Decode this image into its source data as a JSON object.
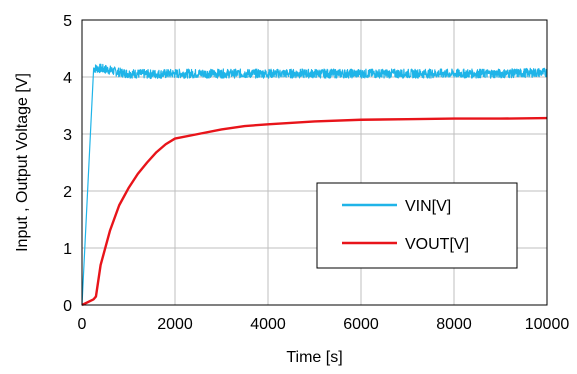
{
  "chart_data": {
    "type": "line",
    "xlabel": "Time [s]",
    "ylabel": "Input , Output Voltage [V]",
    "xlim": [
      0,
      10000
    ],
    "ylim": [
      0,
      5
    ],
    "xticks": [
      0,
      2000,
      4000,
      6000,
      8000,
      10000
    ],
    "yticks": [
      0,
      1,
      2,
      3,
      4,
      5
    ],
    "xtick_labels": [
      "0",
      "2000",
      "4000",
      "6000",
      "8000",
      "10000"
    ],
    "ytick_labels": [
      "0",
      "1",
      "2",
      "3",
      "4",
      "5"
    ],
    "grid": true,
    "legend_placement": "center-right",
    "series": [
      {
        "name": "VIN[V]",
        "color": "#1fb4e8",
        "x": [
          0,
          250,
          400,
          600,
          800,
          1000,
          1500,
          2000,
          3000,
          4000,
          5000,
          6000,
          7000,
          8000,
          9000,
          10000
        ],
        "y": [
          0,
          4.15,
          4.15,
          4.12,
          4.08,
          4.06,
          4.05,
          4.06,
          4.06,
          4.06,
          4.06,
          4.06,
          4.06,
          4.06,
          4.06,
          4.08
        ],
        "noise_amplitude": 0.08
      },
      {
        "name": "VOUT[V]",
        "color": "#e8141a",
        "x": [
          0,
          250,
          300,
          400,
          600,
          800,
          1000,
          1200,
          1400,
          1600,
          1800,
          2000,
          2500,
          3000,
          3500,
          4000,
          5000,
          6000,
          7000,
          8000,
          9000,
          10000
        ],
        "y": [
          0,
          0.1,
          0.15,
          0.7,
          1.3,
          1.75,
          2.05,
          2.3,
          2.5,
          2.68,
          2.82,
          2.92,
          3.0,
          3.08,
          3.14,
          3.17,
          3.22,
          3.25,
          3.26,
          3.27,
          3.27,
          3.28
        ]
      }
    ]
  }
}
